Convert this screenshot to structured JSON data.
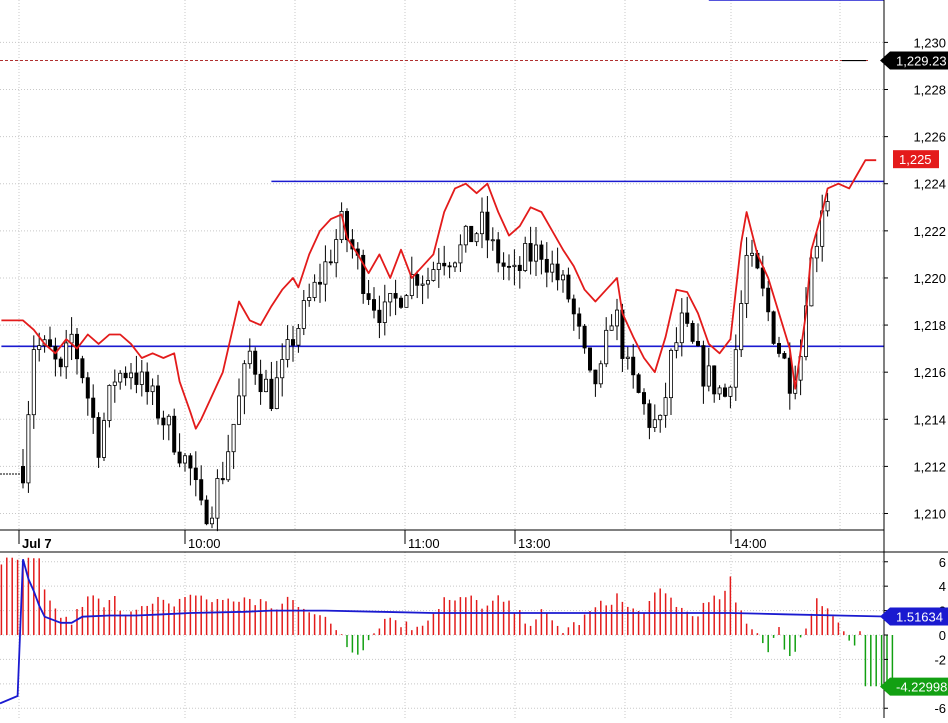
{
  "chart_data": [
    {
      "type": "candlestick",
      "panel": "price",
      "y_axis_position": "right",
      "ylim": [
        1.2093,
        1.2318
      ],
      "yticks": [
        1.21,
        1.212,
        1.214,
        1.216,
        1.218,
        1.22,
        1.222,
        1.224,
        1.226,
        1.228,
        1.23
      ],
      "ytick_labels": [
        "1,210",
        "1,212",
        "1,214",
        "1,216",
        "1,218",
        "1,220",
        "1,222",
        "1,224",
        "1,226",
        "1,228",
        "1,230"
      ],
      "xtick_labels": [
        {
          "label": "Jul 7",
          "bold": true,
          "bar_index": 0
        },
        {
          "label": "10:00",
          "bold": false,
          "bar_index": 31
        },
        {
          "label": "11:00",
          "bold": false,
          "bar_index": 71
        },
        {
          "label": "13:00",
          "bold": false,
          "bar_index": 91
        },
        {
          "label": "14:00",
          "bold": false,
          "bar_index": 131
        }
      ],
      "grid": true,
      "bar_count": 150,
      "close_anchors": [
        [
          0,
          1.212
        ],
        [
          2,
          1.2172
        ],
        [
          5,
          1.2168
        ],
        [
          7,
          1.2158
        ],
        [
          9,
          1.2175
        ],
        [
          11,
          1.216
        ],
        [
          14,
          1.213
        ],
        [
          17,
          1.2158
        ],
        [
          20,
          1.2162
        ],
        [
          24,
          1.2148
        ],
        [
          28,
          1.2132
        ],
        [
          31,
          1.2118
        ],
        [
          33,
          1.21
        ],
        [
          35,
          1.2105
        ],
        [
          37,
          1.2118
        ],
        [
          40,
          1.2148
        ],
        [
          42,
          1.2168
        ],
        [
          44,
          1.2158
        ],
        [
          46,
          1.215
        ],
        [
          48,
          1.216
        ],
        [
          50,
          1.2175
        ],
        [
          53,
          1.219
        ],
        [
          56,
          1.2205
        ],
        [
          59,
          1.2222
        ],
        [
          61,
          1.2212
        ],
        [
          63,
          1.22
        ],
        [
          65,
          1.219
        ],
        [
          67,
          1.2184
        ],
        [
          69,
          1.219
        ],
        [
          71,
          1.2198
        ],
        [
          73,
          1.2202
        ],
        [
          75,
          1.22
        ],
        [
          77,
          1.221
        ],
        [
          79,
          1.221
        ],
        [
          81,
          1.2212
        ],
        [
          83,
          1.2218
        ],
        [
          85,
          1.2222
        ],
        [
          87,
          1.2212
        ],
        [
          89,
          1.2205
        ],
        [
          91,
          1.22
        ],
        [
          93,
          1.2208
        ],
        [
          96,
          1.2212
        ],
        [
          99,
          1.22
        ],
        [
          101,
          1.2192
        ],
        [
          103,
          1.2175
        ],
        [
          105,
          1.2155
        ],
        [
          107,
          1.2158
        ],
        [
          109,
          1.2185
        ],
        [
          110,
          1.2182
        ],
        [
          112,
          1.216
        ],
        [
          114,
          1.215
        ],
        [
          116,
          1.214
        ],
        [
          118,
          1.2136
        ],
        [
          120,
          1.2165
        ],
        [
          122,
          1.218
        ],
        [
          124,
          1.217
        ],
        [
          126,
          1.216
        ],
        [
          128,
          1.2155
        ],
        [
          130,
          1.215
        ],
        [
          132,
          1.217
        ],
        [
          134,
          1.2208
        ],
        [
          136,
          1.22
        ],
        [
          138,
          1.2185
        ],
        [
          140,
          1.217
        ],
        [
          142,
          1.2158
        ],
        [
          144,
          1.2168
        ],
        [
          145,
          1.2195
        ],
        [
          147,
          1.2218
        ],
        [
          148,
          1.2232
        ],
        [
          150,
          1.2238
        ],
        [
          152,
          1.2228
        ],
        [
          154,
          1.2235
        ]
      ],
      "overlay_line": {
        "color": "#e31b1b",
        "points": [
          [
            -4,
            1.2182
          ],
          [
            0,
            1.2182
          ],
          [
            2,
            1.2178
          ],
          [
            4,
            1.2172
          ],
          [
            6,
            1.2168
          ],
          [
            8,
            1.2174
          ],
          [
            10,
            1.217
          ],
          [
            12,
            1.2176
          ],
          [
            14,
            1.2172
          ],
          [
            16,
            1.2176
          ],
          [
            18,
            1.2176
          ],
          [
            20,
            1.2172
          ],
          [
            22,
            1.2166
          ],
          [
            24,
            1.2168
          ],
          [
            26,
            1.2166
          ],
          [
            28,
            1.2168
          ],
          [
            29,
            1.2156
          ],
          [
            31,
            1.2143
          ],
          [
            32,
            1.2136
          ],
          [
            33,
            1.214
          ],
          [
            35,
            1.215
          ],
          [
            37,
            1.216
          ],
          [
            39,
            1.218
          ],
          [
            40,
            1.219
          ],
          [
            42,
            1.2182
          ],
          [
            44,
            1.218
          ],
          [
            46,
            1.2188
          ],
          [
            48,
            1.2195
          ],
          [
            50,
            1.22
          ],
          [
            51,
            1.2196
          ],
          [
            53,
            1.221
          ],
          [
            55,
            1.222
          ],
          [
            57,
            1.2225
          ],
          [
            59,
            1.2227
          ],
          [
            60,
            1.2217
          ],
          [
            62,
            1.221
          ],
          [
            64,
            1.2202
          ],
          [
            66,
            1.221
          ],
          [
            68,
            1.22
          ],
          [
            70,
            1.2212
          ],
          [
            72,
            1.22
          ],
          [
            74,
            1.2205
          ],
          [
            76,
            1.221
          ],
          [
            78,
            1.2228
          ],
          [
            80,
            1.2238
          ],
          [
            82,
            1.224
          ],
          [
            84,
            1.2236
          ],
          [
            86,
            1.224
          ],
          [
            88,
            1.2228
          ],
          [
            90,
            1.2218
          ],
          [
            92,
            1.2222
          ],
          [
            94,
            1.223
          ],
          [
            96,
            1.2228
          ],
          [
            98,
            1.222
          ],
          [
            100,
            1.2212
          ],
          [
            102,
            1.2205
          ],
          [
            104,
            1.2195
          ],
          [
            106,
            1.219
          ],
          [
            108,
            1.2195
          ],
          [
            110,
            1.22
          ],
          [
            111,
            1.2185
          ],
          [
            113,
            1.2175
          ],
          [
            115,
            1.2166
          ],
          [
            117,
            1.216
          ],
          [
            119,
            1.2175
          ],
          [
            121,
            1.2195
          ],
          [
            123,
            1.2194
          ],
          [
            125,
            1.2185
          ],
          [
            127,
            1.2172
          ],
          [
            129,
            1.2168
          ],
          [
            131,
            1.2174
          ],
          [
            133,
            1.2215
          ],
          [
            134,
            1.2228
          ],
          [
            136,
            1.221
          ],
          [
            138,
            1.22
          ],
          [
            140,
            1.2185
          ],
          [
            142,
            1.217
          ],
          [
            143,
            1.2153
          ],
          [
            145,
            1.2185
          ],
          [
            146,
            1.2212
          ],
          [
            148,
            1.2228
          ],
          [
            149,
            1.2238
          ],
          [
            151,
            1.224
          ],
          [
            153,
            1.2238
          ],
          [
            154,
            1.2242
          ],
          [
            156,
            1.225
          ],
          [
            158,
            1.225
          ]
        ]
      },
      "horizontal_lines": [
        {
          "y": 1.2171,
          "from_bar": -4,
          "to_bar": 175,
          "color": "#1a1ad0"
        },
        {
          "y": 1.2241,
          "from_bar": 46,
          "to_bar": 175,
          "color": "#1a1ad0"
        },
        {
          "y": 1.2318,
          "from_bar": 127,
          "to_bar": 175,
          "color": "#1a1ad0"
        }
      ],
      "dashed_line": {
        "y": 1.22923,
        "color": "#b03030"
      },
      "price_tags": [
        {
          "value": 1.22923,
          "label": "1,229.23",
          "bg": "#000000",
          "fg": "#ffffff"
        },
        {
          "value": 1.225,
          "label": "1,225",
          "bg": "#e41b1b",
          "fg": "#ffffff"
        }
      ]
    },
    {
      "type": "bar",
      "panel": "oscillator",
      "y_axis_position": "right",
      "ylim": [
        -6.8,
        6.8
      ],
      "yticks": [
        -6,
        -4,
        -2,
        0,
        2,
        4,
        6
      ],
      "ytick_labels": [
        "-6",
        "-4",
        "-2",
        "0",
        "2",
        "4",
        "6"
      ],
      "grid": true,
      "positive_color": "#e31b1b",
      "negative_color": "#12a012",
      "bar_anchors": [
        [
          0,
          6
        ],
        [
          3,
          6
        ],
        [
          4,
          3.5
        ],
        [
          5,
          2.4
        ],
        [
          7,
          1.6
        ],
        [
          9,
          1.0
        ],
        [
          11,
          2.6
        ],
        [
          13,
          3.1
        ],
        [
          15,
          2.3
        ],
        [
          17,
          2.9
        ],
        [
          19,
          1.9
        ],
        [
          21,
          2.5
        ],
        [
          23,
          2.1
        ],
        [
          25,
          2.8
        ],
        [
          27,
          2.3
        ],
        [
          29,
          2.9
        ],
        [
          31,
          3.4
        ],
        [
          33,
          3.0
        ],
        [
          35,
          2.8
        ],
        [
          37,
          3.1
        ],
        [
          39,
          2.5
        ],
        [
          41,
          3.3
        ],
        [
          43,
          2.4
        ],
        [
          45,
          2.7
        ],
        [
          47,
          2.0
        ],
        [
          49,
          3.0
        ],
        [
          51,
          2.6
        ],
        [
          53,
          2.2
        ],
        [
          55,
          1.5
        ],
        [
          57,
          0.8
        ],
        [
          59,
          0.2
        ],
        [
          60,
          -0.9
        ],
        [
          62,
          -1.3
        ],
        [
          64,
          -0.4
        ],
        [
          66,
          0.9
        ],
        [
          68,
          1.5
        ],
        [
          70,
          1.0
        ],
        [
          72,
          0.6
        ],
        [
          74,
          1.1
        ],
        [
          76,
          1.8
        ],
        [
          78,
          3.0
        ],
        [
          80,
          2.6
        ],
        [
          82,
          3.1
        ],
        [
          84,
          2.7
        ],
        [
          86,
          2.3
        ],
        [
          88,
          2.9
        ],
        [
          90,
          2.4
        ],
        [
          92,
          1.6
        ],
        [
          94,
          1.1
        ],
        [
          96,
          1.8
        ],
        [
          98,
          1.0
        ],
        [
          100,
          0.4
        ],
        [
          102,
          0.8
        ],
        [
          104,
          1.4
        ],
        [
          106,
          2.2
        ],
        [
          108,
          2.6
        ],
        [
          110,
          3.2
        ],
        [
          112,
          2.2
        ],
        [
          114,
          1.8
        ],
        [
          116,
          2.6
        ],
        [
          118,
          3.5
        ],
        [
          120,
          3.0
        ],
        [
          122,
          2.1
        ],
        [
          124,
          1.6
        ],
        [
          126,
          2.3
        ],
        [
          128,
          2.8
        ],
        [
          130,
          3.4
        ],
        [
          131,
          4.4
        ],
        [
          132,
          2.6
        ],
        [
          134,
          1.2
        ],
        [
          136,
          0.2
        ],
        [
          137,
          -0.6
        ],
        [
          138,
          -1.0
        ],
        [
          140,
          0.4
        ],
        [
          141,
          -1.5
        ],
        [
          143,
          -1.2
        ],
        [
          145,
          0.6
        ],
        [
          147,
          3.2
        ],
        [
          149,
          2.3
        ],
        [
          151,
          0.9
        ],
        [
          152,
          0.3
        ],
        [
          153,
          -0.5
        ],
        [
          154,
          -0.8
        ],
        [
          155,
          0.2
        ],
        [
          156,
          -4.2
        ],
        [
          161,
          -4.2
        ]
      ],
      "signal_line": {
        "color": "#1a1ad0",
        "points": [
          [
            -5,
            -5.6
          ],
          [
            -1,
            -5.0
          ],
          [
            0,
            6.2
          ],
          [
            1,
            4.6
          ],
          [
            2,
            3.6
          ],
          [
            3,
            2.4
          ],
          [
            4,
            1.5
          ],
          [
            7,
            1.0
          ],
          [
            9,
            1.0
          ],
          [
            11,
            1.5
          ],
          [
            16,
            1.6
          ],
          [
            21,
            1.6
          ],
          [
            26,
            1.7
          ],
          [
            31,
            1.8
          ],
          [
            41,
            1.9
          ],
          [
            46,
            2.0
          ],
          [
            56,
            2.0
          ],
          [
            66,
            1.9
          ],
          [
            76,
            1.8
          ],
          [
            91,
            1.8
          ],
          [
            106,
            1.8
          ],
          [
            121,
            1.8
          ],
          [
            131,
            1.8
          ],
          [
            141,
            1.7
          ],
          [
            151,
            1.6
          ],
          [
            161,
            1.5
          ]
        ]
      },
      "value_tags": [
        {
          "value": 1.51634,
          "label": "1.51634",
          "bg": "#1a1ad0",
          "fg": "#ffffff"
        },
        {
          "value": -4.22998,
          "label": "-4.22998",
          "bg": "#12a012",
          "fg": "#ffffff"
        }
      ]
    }
  ]
}
